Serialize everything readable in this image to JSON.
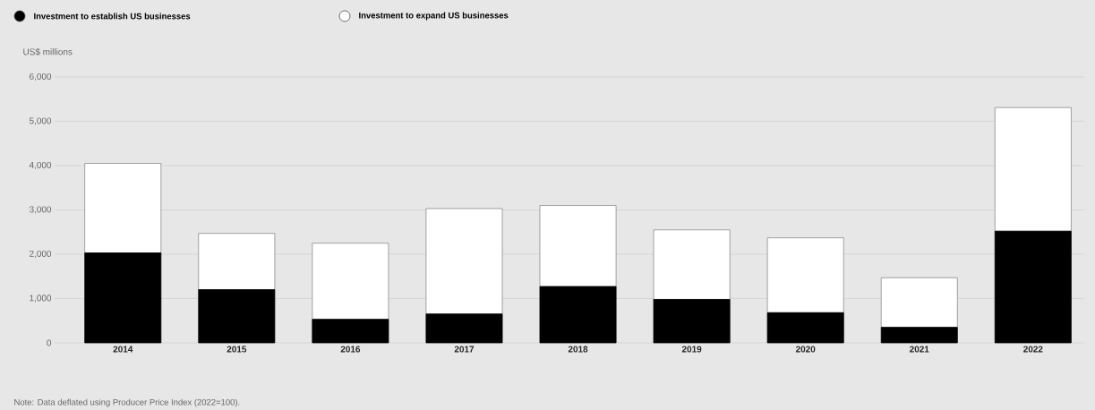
{
  "chart_data": {
    "type": "bar",
    "stacked": true,
    "ylabel": "US$ millions",
    "categories": [
      "2014",
      "2015",
      "2016",
      "2017",
      "2018",
      "2019",
      "2020",
      "2021",
      "2022"
    ],
    "series": [
      {
        "name": "Investment to establish US businesses",
        "color": "#000000",
        "values": [
          2030,
          1200,
          530,
          650,
          1270,
          980,
          680,
          350,
          2520
        ]
      },
      {
        "name": "Investment to expand US businesses",
        "color": "#ffffff",
        "values": [
          2020,
          1270,
          1720,
          2380,
          1830,
          1570,
          1690,
          1120,
          2790
        ]
      }
    ],
    "ylim": [
      0,
      6000
    ],
    "yticks": [
      0,
      {
        "value": 1000,
        "label": "1,000"
      },
      {
        "value": 2000,
        "label": "2,000"
      },
      {
        "value": 3000,
        "label": "3,000"
      },
      {
        "value": 4000,
        "label": "4,000"
      },
      {
        "value": 5000,
        "label": "5,000"
      },
      {
        "value": 6000,
        "label": "6,000"
      }
    ],
    "grid": "y",
    "legend": "top left",
    "annotations": [
      "Note: Data deflated using Producer Price Index (2022=100)."
    ]
  }
}
